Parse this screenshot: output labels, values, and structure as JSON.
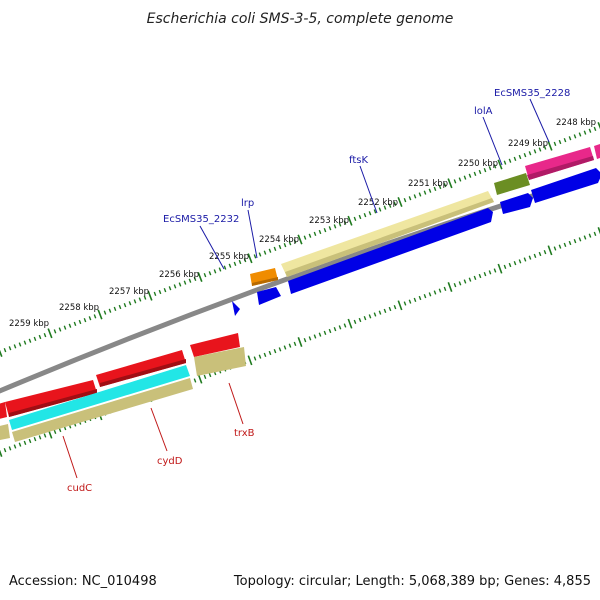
{
  "title": "Escherichia coli SMS-3-5, complete genome",
  "footer": {
    "accession": "Accession: NC_010498",
    "summary": "Topology: circular; Length: 5,068,389 bp; Genes: 4,855"
  },
  "kbp_labels": [
    "2248 kbp",
    "2249 kbp",
    "2250 kbp",
    "2251 kbp",
    "2252 kbp",
    "2253 kbp",
    "2254 kbp",
    "2255 kbp",
    "2256 kbp",
    "2257 kbp",
    "2258 kbp",
    "2259 kbp"
  ],
  "gene_labels": {
    "ecsms35_2228": "EcSMS35_2228",
    "lola": "lolA",
    "ftsk": "ftsK",
    "lrp": "lrp",
    "ecsms35_2232": "EcSMS35_2232",
    "trxb": "trxB",
    "cydd": "cydD",
    "cudc": "cudC"
  },
  "colors": {
    "axis_tick": "#1f7a1f",
    "backbone": "#888888",
    "cds_forward": "#0000e6",
    "cds_reverse": "#e8141c",
    "khaki": "#c9c07a",
    "pale_yellow": "#efe6a0",
    "olive": "#6b8e23",
    "pink": "#e8288a",
    "orange": "#f08c00",
    "cyan": "#22e6e6",
    "label_up": "#1a1aa6",
    "label_down": "#c01818"
  }
}
